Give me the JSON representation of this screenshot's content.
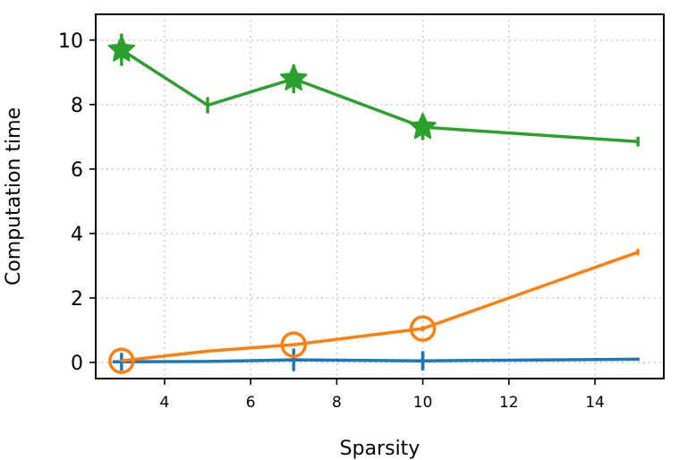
{
  "chart_data": {
    "type": "line",
    "title": "",
    "xlabel": "Sparsity",
    "ylabel": "Computation time",
    "xlim": [
      2.4,
      15.6
    ],
    "ylim": [
      -0.5,
      10.8
    ],
    "xticks": [
      4,
      6,
      8,
      10,
      12,
      14
    ],
    "yticks": [
      0,
      2,
      4,
      6,
      8,
      10
    ],
    "grid": true,
    "series": [
      {
        "color": "#1f77b4",
        "x": [
          3,
          5,
          7,
          10,
          15
        ],
        "y": [
          0.02,
          0.03,
          0.08,
          0.05,
          0.1
        ],
        "err": [
          0.05,
          0.02,
          0.35,
          0.3,
          0.05
        ],
        "markers_at": [
          3,
          7,
          10
        ],
        "marker": "plus"
      },
      {
        "color": "#ff7f0e",
        "x": [
          3,
          5,
          7,
          10,
          15
        ],
        "y": [
          0.05,
          0.35,
          0.55,
          1.05,
          3.42
        ],
        "err": [
          0.02,
          0.02,
          0.05,
          0.08,
          0.1
        ],
        "markers_at": [
          3,
          7,
          10
        ],
        "marker": "circle"
      },
      {
        "color": "#2ca02c",
        "x": [
          3,
          5,
          7,
          10,
          15
        ],
        "y": [
          9.7,
          7.98,
          8.8,
          7.3,
          6.85
        ],
        "err": [
          0.5,
          0.25,
          0.45,
          0.4,
          0.15
        ],
        "markers_at": [
          3,
          7,
          10
        ],
        "marker": "star"
      }
    ]
  }
}
